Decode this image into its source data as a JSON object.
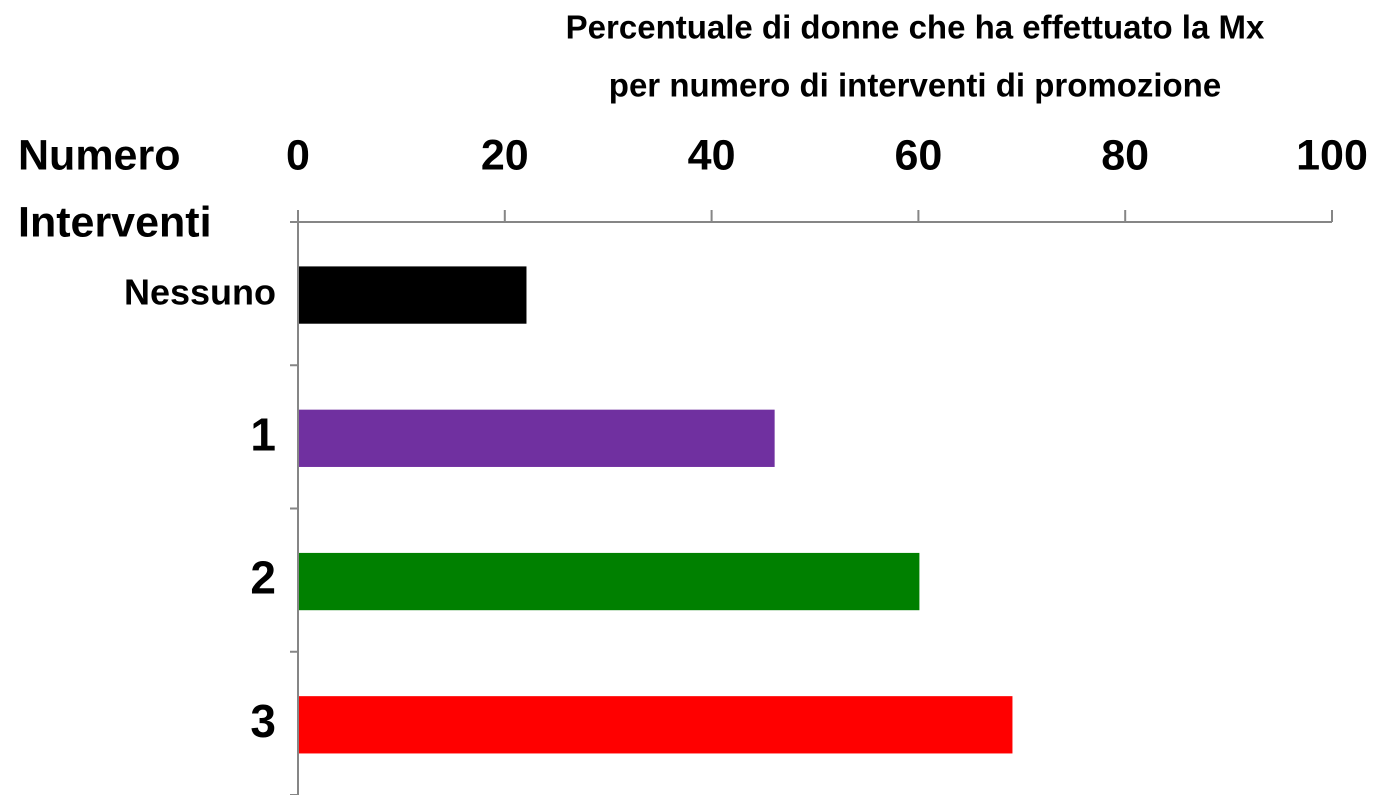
{
  "chart_data": {
    "type": "barh",
    "title": [
      "Percentuale di donne che ha effettuato la Mx",
      "per numero di interventi di promozione"
    ],
    "y_label": [
      "Numero",
      "Interventi"
    ],
    "categories": [
      "Nessuno",
      "1",
      "2",
      "3"
    ],
    "values": [
      22,
      46,
      60,
      69
    ],
    "colors": [
      "#000000",
      "#7030a0",
      "#008000",
      "#ff0000"
    ],
    "xlim": [
      0,
      100
    ],
    "xticks": [
      0,
      20,
      40,
      60,
      80,
      100
    ]
  }
}
